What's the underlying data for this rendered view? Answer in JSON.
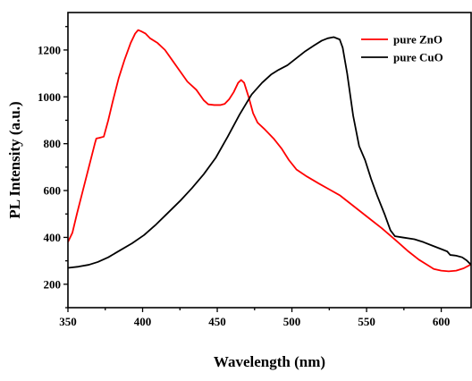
{
  "chart_data": {
    "type": "line",
    "xlabel": "Wavelength (nm)",
    "ylabel": "PL Intensity (a.u.)",
    "xlim": [
      350,
      620
    ],
    "ylim": [
      100,
      1360
    ],
    "xticks": [
      350,
      400,
      450,
      500,
      550,
      600
    ],
    "yticks": [
      200,
      400,
      600,
      800,
      1000,
      1200
    ],
    "legend_position": "top-right",
    "grid": false,
    "series": [
      {
        "name": "pure ZnO",
        "color": "#ff0000",
        "points": [
          [
            350,
            380
          ],
          [
            353,
            420
          ],
          [
            356,
            500
          ],
          [
            360,
            600
          ],
          [
            364,
            700
          ],
          [
            368,
            800
          ],
          [
            369,
            822
          ],
          [
            371,
            825
          ],
          [
            374,
            830
          ],
          [
            377,
            900
          ],
          [
            380,
            980
          ],
          [
            384,
            1080
          ],
          [
            388,
            1160
          ],
          [
            392,
            1230
          ],
          [
            395,
            1270
          ],
          [
            397,
            1285
          ],
          [
            399,
            1280
          ],
          [
            402,
            1270
          ],
          [
            405,
            1250
          ],
          [
            410,
            1230
          ],
          [
            415,
            1200
          ],
          [
            420,
            1155
          ],
          [
            425,
            1110
          ],
          [
            430,
            1065
          ],
          [
            436,
            1030
          ],
          [
            441,
            985
          ],
          [
            444,
            968
          ],
          [
            448,
            965
          ],
          [
            452,
            965
          ],
          [
            455,
            970
          ],
          [
            458,
            990
          ],
          [
            461,
            1020
          ],
          [
            464,
            1060
          ],
          [
            466,
            1072
          ],
          [
            468,
            1060
          ],
          [
            471,
            1000
          ],
          [
            474,
            930
          ],
          [
            477,
            890
          ],
          [
            482,
            860
          ],
          [
            488,
            820
          ],
          [
            493,
            780
          ],
          [
            498,
            730
          ],
          [
            503,
            690
          ],
          [
            510,
            660
          ],
          [
            518,
            630
          ],
          [
            525,
            605
          ],
          [
            532,
            580
          ],
          [
            540,
            540
          ],
          [
            550,
            490
          ],
          [
            560,
            440
          ],
          [
            570,
            385
          ],
          [
            578,
            340
          ],
          [
            585,
            305
          ],
          [
            590,
            285
          ],
          [
            595,
            265
          ],
          [
            600,
            258
          ],
          [
            605,
            255
          ],
          [
            610,
            258
          ],
          [
            615,
            268
          ],
          [
            620,
            285
          ]
        ]
      },
      {
        "name": "pure CuO",
        "color": "#000000",
        "points": [
          [
            350,
            270
          ],
          [
            357,
            275
          ],
          [
            364,
            283
          ],
          [
            370,
            295
          ],
          [
            377,
            315
          ],
          [
            385,
            345
          ],
          [
            393,
            375
          ],
          [
            401,
            410
          ],
          [
            409,
            455
          ],
          [
            417,
            505
          ],
          [
            425,
            555
          ],
          [
            433,
            610
          ],
          [
            441,
            670
          ],
          [
            449,
            740
          ],
          [
            457,
            830
          ],
          [
            465,
            925
          ],
          [
            473,
            1010
          ],
          [
            480,
            1060
          ],
          [
            486,
            1095
          ],
          [
            491,
            1115
          ],
          [
            497,
            1135
          ],
          [
            503,
            1165
          ],
          [
            509,
            1195
          ],
          [
            515,
            1220
          ],
          [
            520,
            1240
          ],
          [
            524,
            1250
          ],
          [
            528,
            1255
          ],
          [
            532,
            1245
          ],
          [
            534,
            1210
          ],
          [
            537,
            1100
          ],
          [
            541,
            920
          ],
          [
            545,
            790
          ],
          [
            549,
            730
          ],
          [
            553,
            650
          ],
          [
            557,
            580
          ],
          [
            562,
            500
          ],
          [
            566,
            430
          ],
          [
            569,
            405
          ],
          [
            574,
            400
          ],
          [
            582,
            392
          ],
          [
            588,
            380
          ],
          [
            594,
            365
          ],
          [
            600,
            350
          ],
          [
            604,
            340
          ],
          [
            606,
            325
          ],
          [
            610,
            322
          ],
          [
            614,
            315
          ],
          [
            617,
            302
          ],
          [
            620,
            283
          ]
        ]
      }
    ]
  }
}
